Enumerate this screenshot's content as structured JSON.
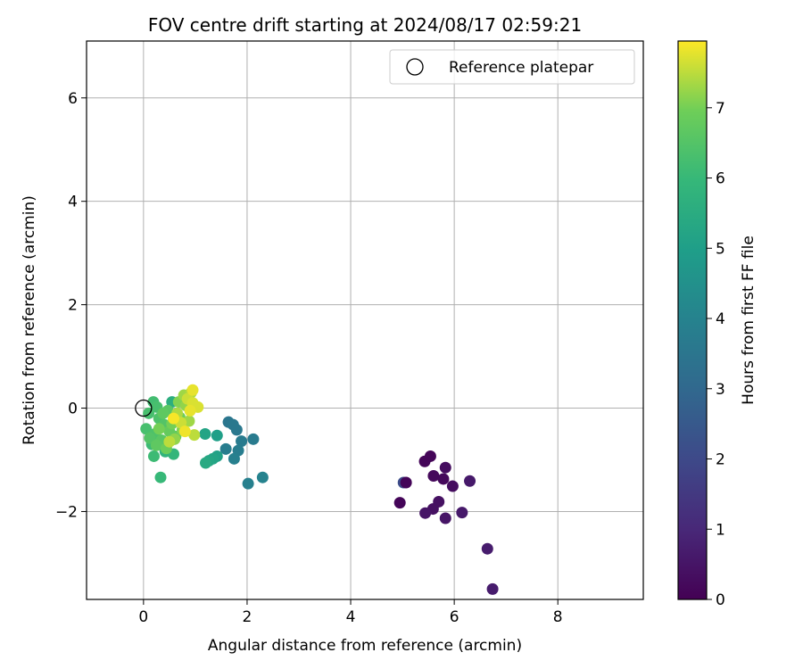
{
  "chart_data": {
    "type": "scatter",
    "title": "FOV centre drift starting at 2024/08/17 02:59:21",
    "xlabel": "Angular distance from reference (arcmin)",
    "ylabel": "Rotation from reference (arcmin)",
    "xlim": [
      -1.1,
      9.65
    ],
    "ylim": [
      -3.7,
      7.1
    ],
    "xticks": [
      0,
      2,
      4,
      6,
      8
    ],
    "yticks": [
      -2,
      0,
      2,
      4,
      6
    ],
    "xtick_labels": [
      "0",
      "2",
      "4",
      "6",
      "8"
    ],
    "ytick_labels": [
      "−2",
      "0",
      "2",
      "4",
      "6"
    ],
    "grid": true,
    "legend": {
      "position": "top-right",
      "entries": [
        "Reference platepar"
      ]
    },
    "reference_point": {
      "x": 0,
      "y": 0
    },
    "colorbar": {
      "label": "Hours from first FF file",
      "range": [
        0,
        7.95
      ],
      "ticks": [
        0,
        1,
        2,
        3,
        4,
        5,
        6,
        7
      ],
      "tick_labels": [
        "0",
        "1",
        "2",
        "3",
        "4",
        "5",
        "6",
        "7"
      ],
      "colormap": "viridis"
    },
    "points": [
      {
        "x": 5.02,
        "y": -1.44,
        "h": 2.1
      },
      {
        "x": 5.07,
        "y": -1.44,
        "h": 0.1
      },
      {
        "x": 4.95,
        "y": -1.83,
        "h": 0.1
      },
      {
        "x": 5.43,
        "y": -1.03,
        "h": 0.1
      },
      {
        "x": 5.54,
        "y": -0.93,
        "h": 0.1
      },
      {
        "x": 5.6,
        "y": -1.31,
        "h": 0.2
      },
      {
        "x": 5.79,
        "y": -1.37,
        "h": 0.2
      },
      {
        "x": 5.83,
        "y": -1.15,
        "h": 0.3
      },
      {
        "x": 5.97,
        "y": -1.51,
        "h": 0.3
      },
      {
        "x": 5.7,
        "y": -1.81,
        "h": 0.4
      },
      {
        "x": 5.59,
        "y": -1.95,
        "h": 0.4
      },
      {
        "x": 5.44,
        "y": -2.03,
        "h": 0.5
      },
      {
        "x": 5.83,
        "y": -2.13,
        "h": 0.5
      },
      {
        "x": 6.15,
        "y": -2.02,
        "h": 0.6
      },
      {
        "x": 6.3,
        "y": -1.41,
        "h": 0.6
      },
      {
        "x": 6.64,
        "y": -2.72,
        "h": 0.7
      },
      {
        "x": 6.74,
        "y": -3.5,
        "h": 0.7
      },
      {
        "x": 1.64,
        "y": -0.27,
        "h": 3.5
      },
      {
        "x": 1.73,
        "y": -0.32,
        "h": 3.6
      },
      {
        "x": 1.8,
        "y": -0.42,
        "h": 3.6
      },
      {
        "x": 1.89,
        "y": -0.64,
        "h": 3.7
      },
      {
        "x": 2.12,
        "y": -0.6,
        "h": 3.7
      },
      {
        "x": 1.59,
        "y": -0.79,
        "h": 3.8
      },
      {
        "x": 1.83,
        "y": -0.82,
        "h": 3.8
      },
      {
        "x": 1.75,
        "y": -0.98,
        "h": 3.9
      },
      {
        "x": 2.02,
        "y": -1.46,
        "h": 3.9
      },
      {
        "x": 2.3,
        "y": -1.34,
        "h": 4.0
      },
      {
        "x": 1.42,
        "y": -0.53,
        "h": 5.0
      },
      {
        "x": 1.19,
        "y": -0.5,
        "h": 5.2
      },
      {
        "x": 1.42,
        "y": -0.93,
        "h": 5.1
      },
      {
        "x": 1.34,
        "y": -0.98,
        "h": 5.2
      },
      {
        "x": 1.26,
        "y": -1.02,
        "h": 5.3
      },
      {
        "x": 1.2,
        "y": -1.06,
        "h": 5.4
      },
      {
        "x": 0.55,
        "y": 0.12,
        "h": 5.6
      },
      {
        "x": 0.6,
        "y": -0.23,
        "h": 5.8
      },
      {
        "x": 0.42,
        "y": -0.84,
        "h": 5.8
      },
      {
        "x": 0.58,
        "y": -0.89,
        "h": 5.9
      },
      {
        "x": 0.33,
        "y": -1.34,
        "h": 6.0
      },
      {
        "x": 0.2,
        "y": -0.93,
        "h": 6.1
      },
      {
        "x": 0.16,
        "y": -0.7,
        "h": 6.1
      },
      {
        "x": 0.19,
        "y": 0.12,
        "h": 6.2
      },
      {
        "x": 0.26,
        "y": 0.02,
        "h": 6.3
      },
      {
        "x": 0.1,
        "y": -0.1,
        "h": 6.3
      },
      {
        "x": 0.05,
        "y": -0.4,
        "h": 6.3
      },
      {
        "x": 0.22,
        "y": -0.5,
        "h": 6.4
      },
      {
        "x": 0.3,
        "y": -0.2,
        "h": 6.4
      },
      {
        "x": 0.4,
        "y": -0.32,
        "h": 6.5
      },
      {
        "x": 0.12,
        "y": -0.58,
        "h": 6.5
      },
      {
        "x": 0.35,
        "y": -0.62,
        "h": 6.6
      },
      {
        "x": 0.47,
        "y": -0.05,
        "h": 6.6
      },
      {
        "x": 0.25,
        "y": -0.72,
        "h": 6.7
      },
      {
        "x": 0.38,
        "y": -0.1,
        "h": 6.7
      },
      {
        "x": 0.5,
        "y": -0.45,
        "h": 6.8
      },
      {
        "x": 0.62,
        "y": -0.55,
        "h": 6.8
      },
      {
        "x": 0.7,
        "y": -0.18,
        "h": 6.9
      },
      {
        "x": 0.44,
        "y": -0.78,
        "h": 6.9
      },
      {
        "x": 0.3,
        "y": -0.4,
        "h": 7.0
      },
      {
        "x": 0.55,
        "y": -0.3,
        "h": 7.0
      },
      {
        "x": 0.68,
        "y": 0.12,
        "h": 7.1
      },
      {
        "x": 0.75,
        "y": -0.42,
        "h": 7.1
      },
      {
        "x": 0.82,
        "y": 0.05,
        "h": 7.2
      },
      {
        "x": 0.6,
        "y": -0.6,
        "h": 7.2
      },
      {
        "x": 0.88,
        "y": -0.25,
        "h": 7.3
      },
      {
        "x": 0.78,
        "y": 0.25,
        "h": 7.3
      },
      {
        "x": 0.65,
        "y": -0.1,
        "h": 7.4
      },
      {
        "x": 0.92,
        "y": 0.3,
        "h": 7.4
      },
      {
        "x": 0.98,
        "y": -0.52,
        "h": 7.5
      },
      {
        "x": 0.5,
        "y": -0.65,
        "h": 7.5
      },
      {
        "x": 0.85,
        "y": 0.18,
        "h": 7.6
      },
      {
        "x": 0.72,
        "y": -0.28,
        "h": 7.6
      },
      {
        "x": 0.95,
        "y": 0.1,
        "h": 7.7
      },
      {
        "x": 1.05,
        "y": 0.02,
        "h": 7.7
      },
      {
        "x": 0.9,
        "y": -0.05,
        "h": 7.8
      },
      {
        "x": 0.95,
        "y": 0.35,
        "h": 7.8
      },
      {
        "x": 0.8,
        "y": -0.45,
        "h": 7.85
      },
      {
        "x": 0.58,
        "y": -0.2,
        "h": 7.9
      }
    ]
  }
}
